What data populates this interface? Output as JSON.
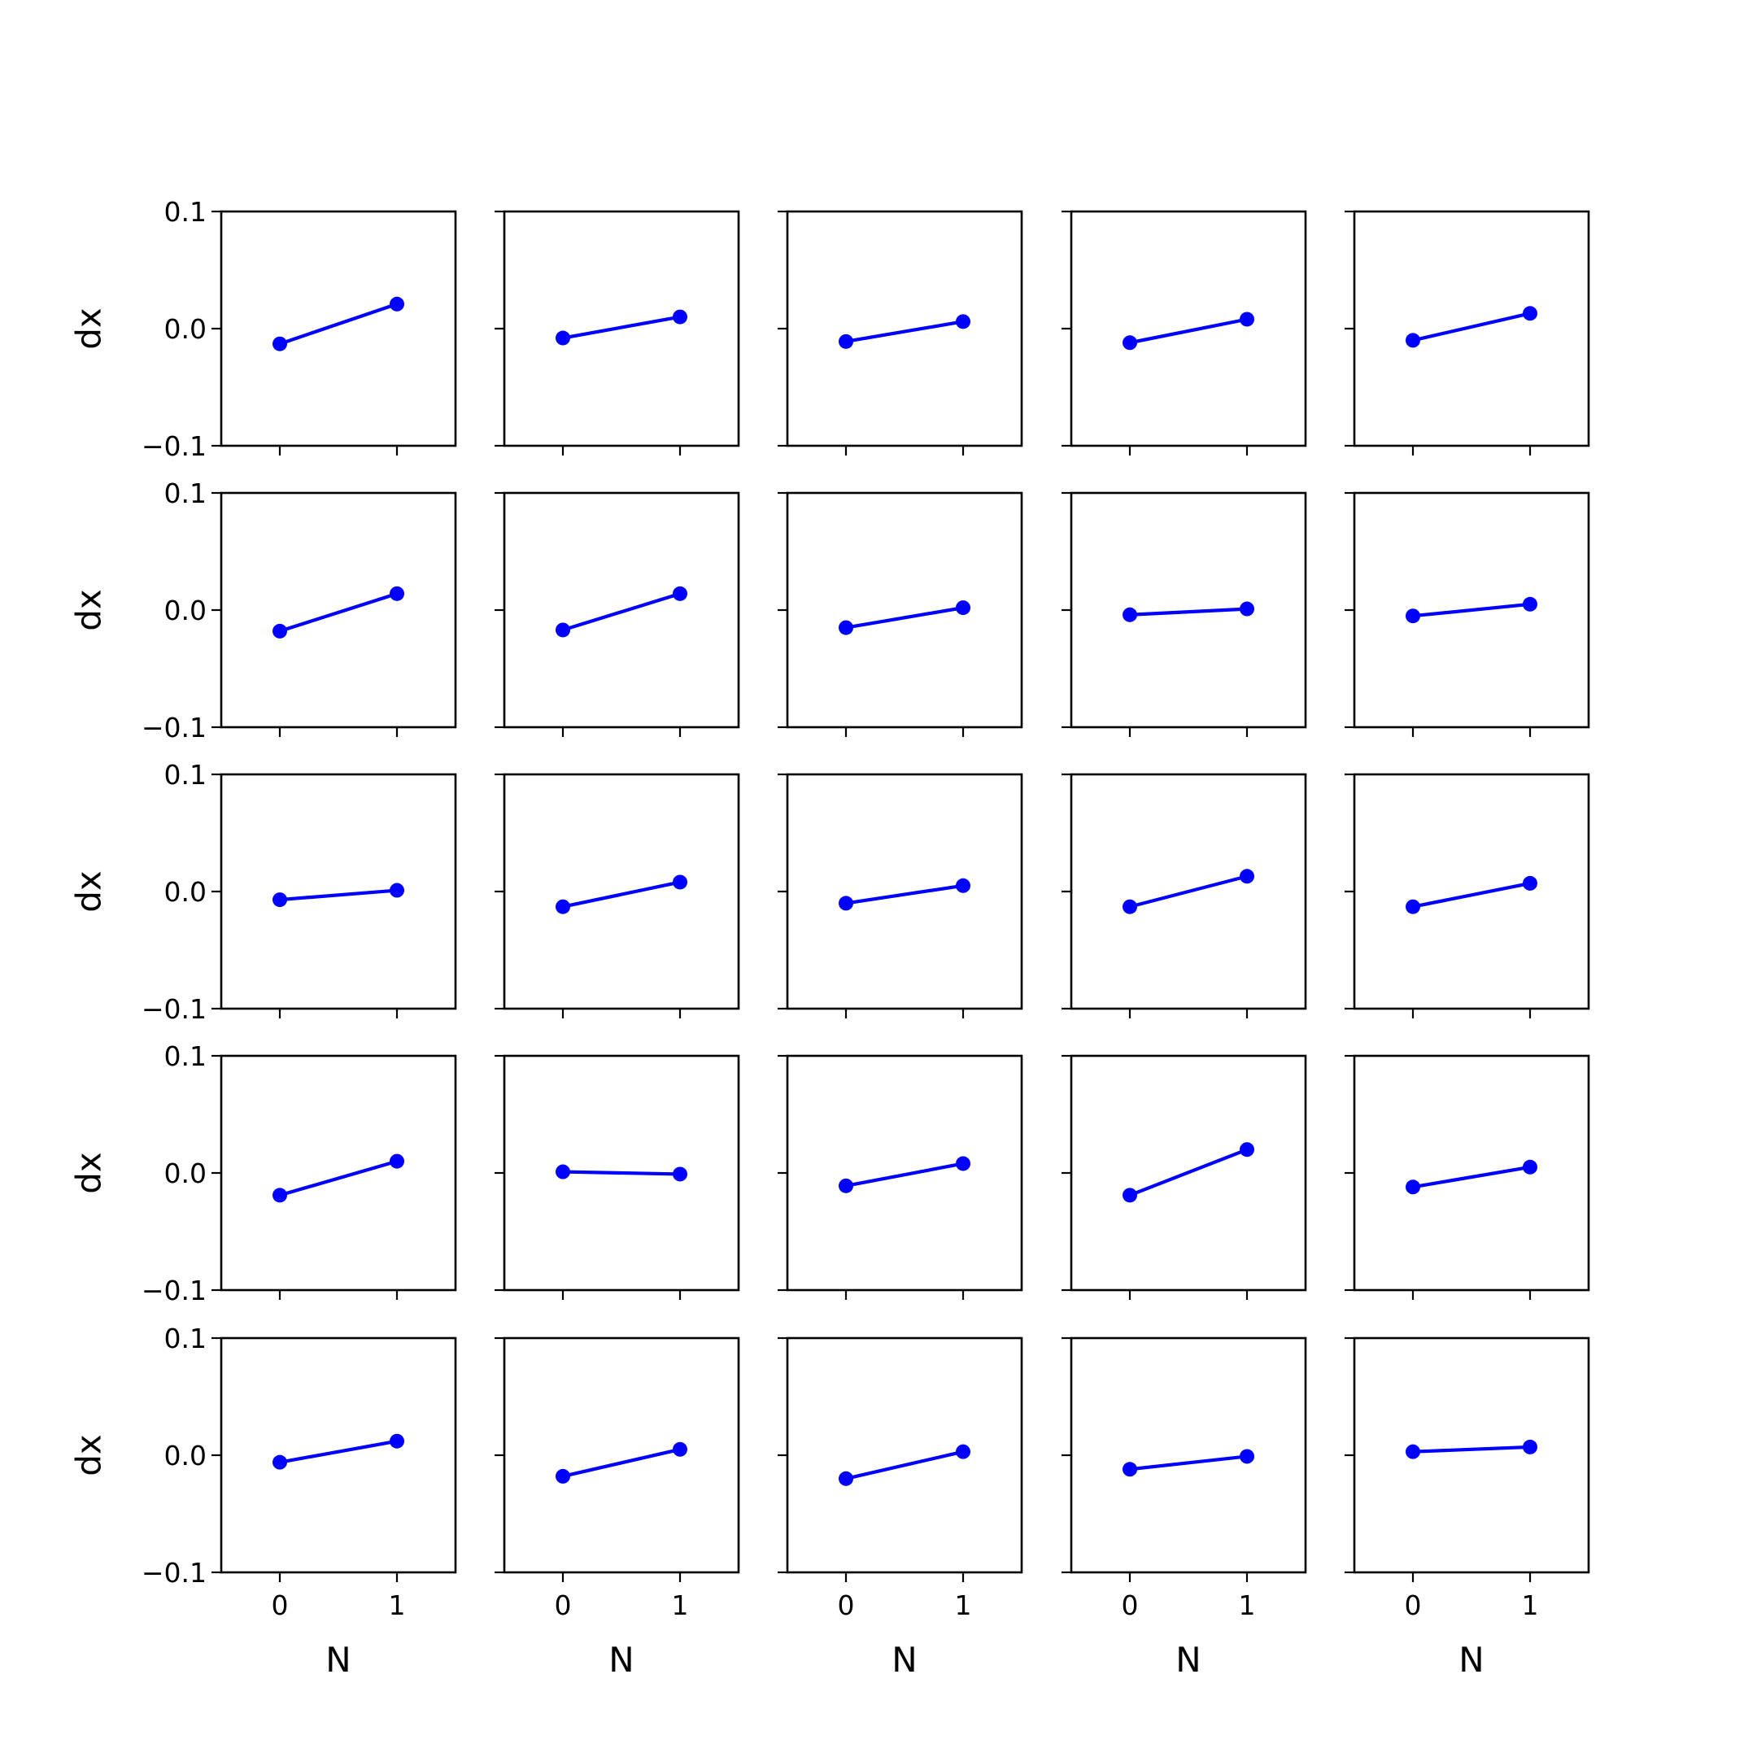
{
  "chart_data": {
    "type": "line",
    "layout": "5x5 grid of small multiples",
    "xlabel": "N",
    "ylabel": "dx",
    "xticks": [
      "0",
      "1"
    ],
    "yticks": [
      "−0.1",
      "0.0",
      "0.1"
    ],
    "xlim": [
      -0.5,
      1.5
    ],
    "ylim": [
      -0.1,
      0.1
    ],
    "grid": false,
    "marker": "circle",
    "line_color": "#0000ff",
    "x": [
      0,
      1
    ],
    "panels": [
      {
        "row": 1,
        "col": 1,
        "values": [
          -0.013,
          0.021
        ]
      },
      {
        "row": 1,
        "col": 2,
        "values": [
          -0.008,
          0.01
        ]
      },
      {
        "row": 1,
        "col": 3,
        "values": [
          -0.011,
          0.006
        ]
      },
      {
        "row": 1,
        "col": 4,
        "values": [
          -0.012,
          0.008
        ]
      },
      {
        "row": 1,
        "col": 5,
        "values": [
          -0.01,
          0.013
        ]
      },
      {
        "row": 2,
        "col": 1,
        "values": [
          -0.018,
          0.014
        ]
      },
      {
        "row": 2,
        "col": 2,
        "values": [
          -0.017,
          0.014
        ]
      },
      {
        "row": 2,
        "col": 3,
        "values": [
          -0.015,
          0.002
        ]
      },
      {
        "row": 2,
        "col": 4,
        "values": [
          -0.004,
          0.001
        ]
      },
      {
        "row": 2,
        "col": 5,
        "values": [
          -0.005,
          0.005
        ]
      },
      {
        "row": 3,
        "col": 1,
        "values": [
          -0.007,
          0.001
        ]
      },
      {
        "row": 3,
        "col": 2,
        "values": [
          -0.013,
          0.008
        ]
      },
      {
        "row": 3,
        "col": 3,
        "values": [
          -0.01,
          0.005
        ]
      },
      {
        "row": 3,
        "col": 4,
        "values": [
          -0.013,
          0.013
        ]
      },
      {
        "row": 3,
        "col": 5,
        "values": [
          -0.013,
          0.007
        ]
      },
      {
        "row": 4,
        "col": 1,
        "values": [
          -0.019,
          0.01
        ]
      },
      {
        "row": 4,
        "col": 2,
        "values": [
          0.001,
          -0.001
        ]
      },
      {
        "row": 4,
        "col": 3,
        "values": [
          -0.011,
          0.008
        ]
      },
      {
        "row": 4,
        "col": 4,
        "values": [
          -0.019,
          0.02
        ]
      },
      {
        "row": 4,
        "col": 5,
        "values": [
          -0.012,
          0.005
        ]
      },
      {
        "row": 5,
        "col": 1,
        "values": [
          -0.006,
          0.012
        ]
      },
      {
        "row": 5,
        "col": 2,
        "values": [
          -0.018,
          0.005
        ]
      },
      {
        "row": 5,
        "col": 3,
        "values": [
          -0.02,
          0.003
        ]
      },
      {
        "row": 5,
        "col": 4,
        "values": [
          -0.012,
          -0.001
        ]
      },
      {
        "row": 5,
        "col": 5,
        "values": [
          0.003,
          0.007
        ]
      }
    ]
  }
}
